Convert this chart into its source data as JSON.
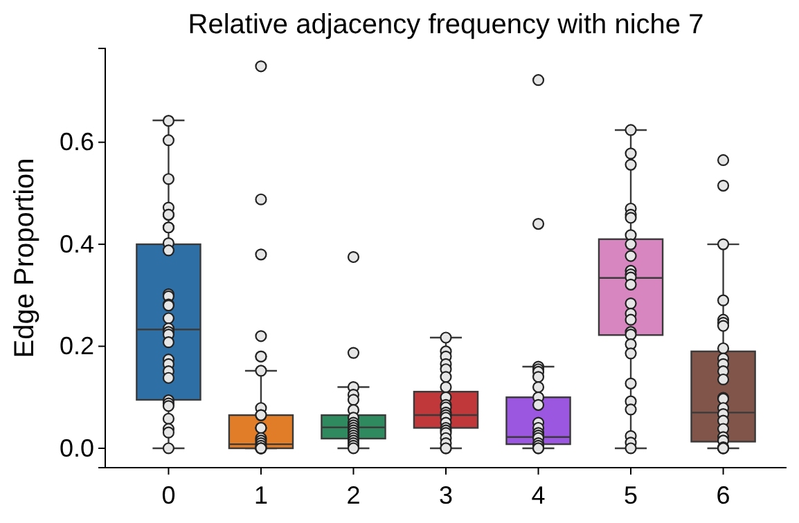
{
  "chart_data": {
    "type": "box",
    "title": "Relative adjacency frequency with niche 7",
    "ylabel": "Edge Proportion",
    "categories": [
      "0",
      "1",
      "2",
      "3",
      "4",
      "5",
      "6"
    ],
    "colors": [
      "#2e6fa6",
      "#e17c28",
      "#2f8a5f",
      "#c0383a",
      "#9c57e0",
      "#d886c0",
      "#81554a"
    ],
    "boxes": [
      {
        "low": 0,
        "q1": 0.095,
        "median": 0.233,
        "q3": 0.4,
        "high": 0.643
      },
      {
        "low": 0,
        "q1": 0,
        "median": 0.008,
        "q3": 0.065,
        "high": 0.152
      },
      {
        "low": 0,
        "q1": 0.019,
        "median": 0.041,
        "q3": 0.065,
        "high": 0.12
      },
      {
        "low": 0,
        "q1": 0.04,
        "median": 0.065,
        "q3": 0.111,
        "high": 0.217
      },
      {
        "low": 0,
        "q1": 0.008,
        "median": 0.022,
        "q3": 0.1,
        "high": 0.16
      },
      {
        "low": 0,
        "q1": 0.222,
        "median": 0.334,
        "q3": 0.41,
        "high": 0.624
      },
      {
        "low": 0,
        "q1": 0.013,
        "median": 0.07,
        "q3": 0.19,
        "high": 0.4
      }
    ],
    "series": [
      {
        "type": "scatter",
        "color": "#e6e6e6",
        "x": [
          "0",
          "0",
          "0",
          "0",
          "0",
          "0",
          "0",
          "0",
          "0",
          "0",
          "0",
          "0",
          "0",
          "0",
          "0",
          "0",
          "0",
          "0",
          "0",
          "0",
          "0",
          "0",
          "0",
          "0",
          "0",
          "0",
          "0",
          "0",
          "0",
          "0",
          "1",
          "1",
          "1",
          "1",
          "1",
          "1",
          "1",
          "1",
          "1",
          "1",
          "1",
          "1",
          "1",
          "1",
          "1",
          "1",
          "1",
          "1",
          "1",
          "1",
          "1",
          "2",
          "2",
          "2",
          "2",
          "2",
          "2",
          "2",
          "2",
          "2",
          "2",
          "2",
          "2",
          "2",
          "2",
          "2",
          "2",
          "2",
          "2",
          "3",
          "3",
          "3",
          "3",
          "3",
          "3",
          "3",
          "3",
          "3",
          "3",
          "3",
          "3",
          "3",
          "3",
          "3",
          "3",
          "3",
          "3",
          "3",
          "3",
          "3",
          "4",
          "4",
          "4",
          "4",
          "4",
          "4",
          "4",
          "4",
          "4",
          "4",
          "4",
          "4",
          "4",
          "4",
          "4",
          "4",
          "4",
          "4",
          "5",
          "5",
          "5",
          "5",
          "5",
          "5",
          "5",
          "5",
          "5",
          "5",
          "5",
          "5",
          "5",
          "5",
          "5",
          "5",
          "5",
          "5",
          "5",
          "5",
          "5",
          "5",
          "5",
          "5",
          "5",
          "5",
          "6",
          "6",
          "6",
          "6",
          "6",
          "6",
          "6",
          "6",
          "6",
          "6",
          "6",
          "6",
          "6",
          "6",
          "6",
          "6",
          "6",
          "6",
          "6",
          "6",
          "6",
          "6",
          "6",
          "6"
        ],
        "values": [
          0.642,
          0.604,
          0.528,
          0.472,
          0.458,
          0.458,
          0.433,
          0.433,
          0.402,
          0.388,
          0.302,
          0.298,
          0.282,
          0.28,
          0.255,
          0.235,
          0.228,
          0.223,
          0.208,
          0.174,
          0.165,
          0.151,
          0.138,
          0.094,
          0.088,
          0.083,
          0.058,
          0.038,
          0.031,
          0,
          0.749,
          0.488,
          0.38,
          0.22,
          0.18,
          0.18,
          0.152,
          0.079,
          0.065,
          0.065,
          0.04,
          0.04,
          0.02,
          0.015,
          0.01,
          0.005,
          0,
          0,
          0,
          0,
          0,
          0.375,
          0.187,
          0.12,
          0.105,
          0.095,
          0.075,
          0.06,
          0.05,
          0.045,
          0.04,
          0.035,
          0.03,
          0.025,
          0.02,
          0.015,
          0.01,
          0.005,
          0,
          0.217,
          0.19,
          0.18,
          0.165,
          0.155,
          0.14,
          0.12,
          0.1,
          0.085,
          0.08,
          0.07,
          0.065,
          0.06,
          0.05,
          0.04,
          0.035,
          0.03,
          0.02,
          0.01,
          0,
          0,
          0.722,
          0.44,
          0.16,
          0.155,
          0.15,
          0.14,
          0.12,
          0.1,
          0.085,
          0.05,
          0.04,
          0.03,
          0.025,
          0.02,
          0.01,
          0.005,
          0,
          0,
          0.624,
          0.578,
          0.556,
          0.47,
          0.458,
          0.452,
          0.418,
          0.4,
          0.377,
          0.348,
          0.341,
          0.335,
          0.321,
          0.284,
          0.264,
          0.252,
          0.228,
          0.223,
          0.204,
          0.186,
          0.127,
          0.092,
          0.076,
          0.024,
          0.011,
          0,
          0.565,
          0.515,
          0.4,
          0.29,
          0.252,
          0.246,
          0.24,
          0.196,
          0.176,
          0.165,
          0.151,
          0.135,
          0.099,
          0.097,
          0.079,
          0.067,
          0.054,
          0.038,
          0.022,
          0.015,
          0.002,
          0,
          0,
          0
        ]
      }
    ],
    "ylim": [
      -0.038,
      0.784
    ],
    "yticks": [
      {
        "value": 0,
        "label": "0.0"
      },
      {
        "value": 0.2,
        "label": "0.2"
      },
      {
        "value": 0.4,
        "label": "0.4"
      },
      {
        "value": 0.6,
        "label": "0.6"
      }
    ],
    "marker": "circle"
  }
}
